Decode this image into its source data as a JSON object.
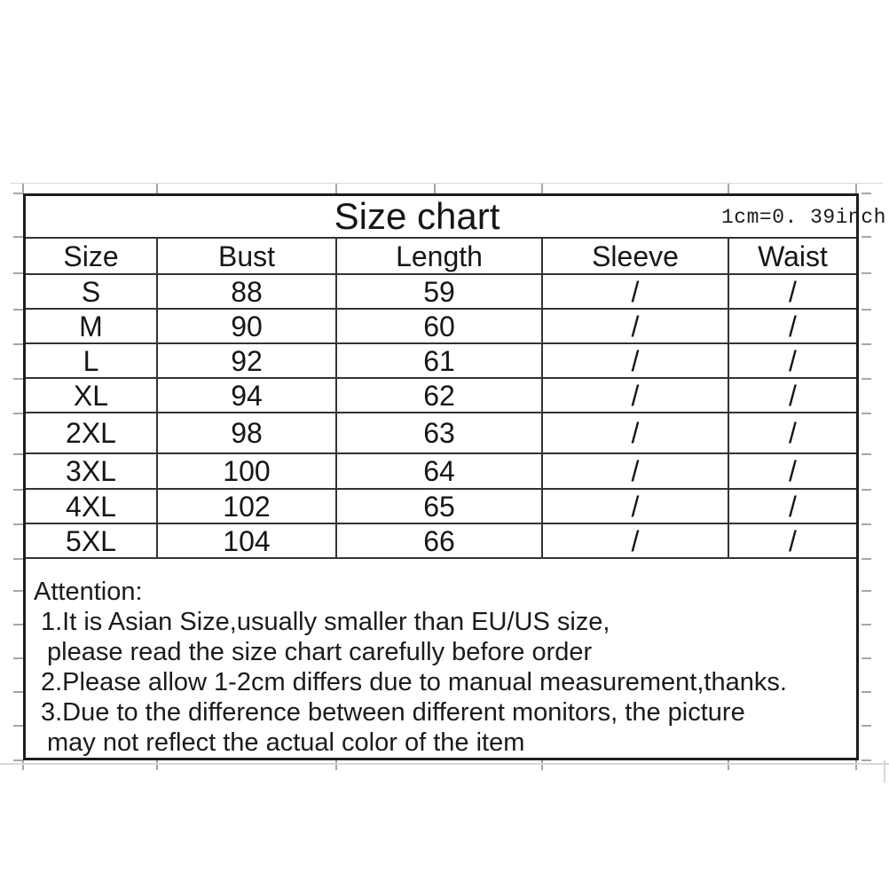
{
  "title": "Size chart",
  "unit_note": "1cm=0. 39inch",
  "table": {
    "columns": [
      "Size",
      "Bust",
      "Length",
      "Sleeve",
      "Waist"
    ],
    "rows": [
      [
        "S",
        "88",
        "59",
        "/",
        "/"
      ],
      [
        "M",
        "90",
        "60",
        "/",
        "/"
      ],
      [
        "L",
        "92",
        "61",
        "/",
        "/"
      ],
      [
        "XL",
        "94",
        "62",
        "/",
        "/"
      ],
      [
        "2XL",
        "98",
        "63",
        "/",
        "/"
      ],
      [
        "3XL",
        "100",
        "64",
        "/",
        "/"
      ],
      [
        "4XL",
        "102",
        "65",
        "/",
        "/"
      ],
      [
        "5XL",
        "104",
        "66",
        "/",
        "/"
      ]
    ]
  },
  "attention": {
    "heading": "Attention:",
    "lines": [
      "1.It is Asian Size,usually smaller than EU/US size,",
      "please read the size chart carefully before order",
      "2.Please allow 1-2cm differs due to manual measurement,thanks.",
      "3.Due to the difference between different monitors, the picture",
      "may not reflect the actual color of the item"
    ]
  },
  "colors": {
    "text": "#161616",
    "table_border": "#1d1d1d",
    "grid_lines": "#333333",
    "faint_gridlines": "#a6a6a6",
    "background": "#ffffff"
  }
}
